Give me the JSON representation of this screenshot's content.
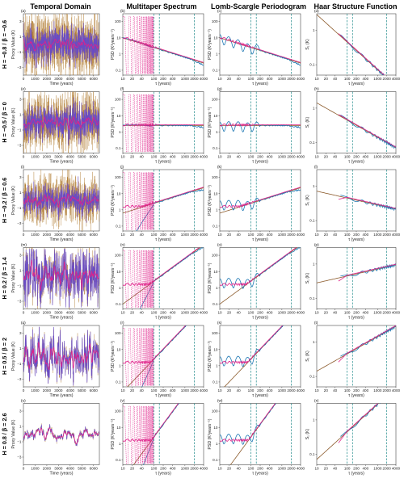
{
  "colors": {
    "proxy": "#b07a2e",
    "true_series": "#6a4cc2",
    "smoothed": "#e0218a",
    "fit_blue": "#1f78b4",
    "reference": "#8b5a2b",
    "cutoff": "#1f8a8a",
    "frame": "#222222"
  },
  "column_titles": [
    "Temporal Domain",
    "Multitaper Spectrum",
    "Lomb-Scargle Periodogram",
    "Haar Structure Function"
  ],
  "row_labels": [
    "H = −0.8 / β = −0.6",
    "H = −0.5 / β = 0",
    "H = −0.2 / β = 0.6",
    "H = 0.2 / β = 1.4",
    "H = 0.5 / β = 2",
    "H = 0.8 / β = 2.6"
  ],
  "panel_letters": [
    [
      "(a)",
      "(b)",
      "(c)",
      "(d)"
    ],
    [
      "(e)",
      "(f)",
      "(g)",
      "(h)"
    ],
    [
      "(i)",
      "(j)",
      "(k)",
      "(l)"
    ],
    [
      "(m)",
      "(n)",
      "(o)",
      "(p)"
    ],
    [
      "(q)",
      "(r)",
      "(s)",
      "(t)"
    ],
    [
      "(u)",
      "(v)",
      "(w)",
      "(x)"
    ]
  ],
  "axes": {
    "time_xlabel": "Time (years)",
    "time_ylabel": "Proxy Value (K)",
    "time_xticks": [
      "0",
      "1000",
      "2000",
      "3000",
      "4000",
      "5000",
      "6000"
    ],
    "time_yticks": [
      "−3",
      "−1",
      "1",
      "3"
    ],
    "psd_ylabel": "PSD (K²years⁻¹)",
    "psd_yticks": [
      "0.1",
      "1",
      "10",
      "100"
    ],
    "tau_xlabel": "τ (years)",
    "tau_xticks": [
      "10",
      "20",
      "40",
      "100",
      "200",
      "400",
      "1000",
      "2000",
      "4000"
    ],
    "haar_ylabel": "S₁ (K)",
    "haar_yticks": [
      "0.1",
      "1"
    ]
  },
  "chart_data": {
    "type": "line",
    "rows": [
      {
        "H": -0.8,
        "beta": -0.6
      },
      {
        "H": -0.5,
        "beta": 0
      },
      {
        "H": -0.2,
        "beta": 0.6
      },
      {
        "H": 0.2,
        "beta": 1.4
      },
      {
        "H": 0.5,
        "beta": 2
      },
      {
        "H": 0.8,
        "beta": 2.6
      }
    ],
    "time_xlim": [
      0,
      6500
    ],
    "time_ylim": [
      -4,
      4
    ],
    "tau_xlim": [
      10,
      4000
    ],
    "psd_ylim": [
      0.05,
      300
    ],
    "haar_ylim": [
      0.05,
      3
    ],
    "cutoff_taus": [
      100,
      150,
      2000
    ]
  }
}
